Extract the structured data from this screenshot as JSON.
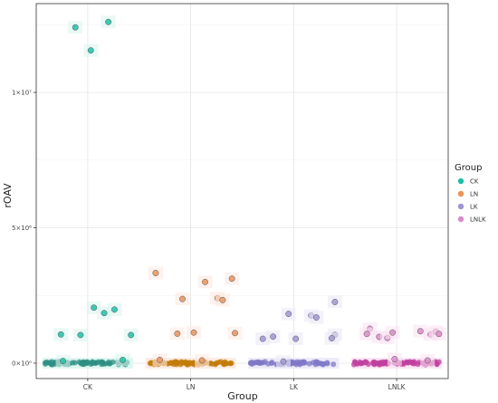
{
  "chart_data": {
    "type": "scatter",
    "xlabel": "Group",
    "ylabel": "rOAV",
    "categories": [
      "CK",
      "LN",
      "LK",
      "LNLK"
    ],
    "y_ticks": [
      {
        "value": 0,
        "label": "0×10⁰"
      },
      {
        "value": 5000000,
        "label": "5×10⁶"
      },
      {
        "value": 10000000,
        "label": "1×10⁷"
      }
    ],
    "ylim": [
      -500000,
      13200000
    ],
    "grid": true,
    "legend": {
      "title": "Group",
      "position": "right",
      "entries": [
        {
          "label": "CK",
          "color": "#1fbfa6"
        },
        {
          "label": "LN",
          "color": "#e8935a"
        },
        {
          "label": "LK",
          "color": "#9d96d4"
        },
        {
          "label": "LNLK",
          "color": "#d98bc8"
        }
      ]
    },
    "series": [
      {
        "category": "CK",
        "point_color": "#1fbfa6",
        "dense_color": "#2e8f83",
        "band_color": "#dcf5f0",
        "points": [
          {
            "offset": -0.12,
            "y": 12400000
          },
          {
            "offset": 0.2,
            "y": 12600000
          },
          {
            "offset": 0.03,
            "y": 11550000
          },
          {
            "offset": 0.06,
            "y": 2050000
          },
          {
            "offset": 0.16,
            "y": 1850000
          },
          {
            "offset": 0.26,
            "y": 1980000
          },
          {
            "offset": -0.26,
            "y": 1060000
          },
          {
            "offset": -0.07,
            "y": 1040000
          },
          {
            "offset": 0.42,
            "y": 1040000
          },
          {
            "offset": -0.24,
            "y": 80000
          },
          {
            "offset": 0.34,
            "y": 120000
          }
        ]
      },
      {
        "category": "LN",
        "point_color": "#e8935a",
        "dense_color": "#c27b08",
        "band_color": "#fde9e2",
        "points": [
          {
            "offset": -0.34,
            "y": 3330000
          },
          {
            "offset": 0.4,
            "y": 3120000
          },
          {
            "offset": 0.14,
            "y": 3000000
          },
          {
            "offset": -0.08,
            "y": 2370000
          },
          {
            "offset": 0.26,
            "y": 2400000
          },
          {
            "offset": 0.31,
            "y": 2330000
          },
          {
            "offset": -0.13,
            "y": 1090000
          },
          {
            "offset": 0.03,
            "y": 1130000
          },
          {
            "offset": 0.43,
            "y": 1110000
          },
          {
            "offset": -0.3,
            "y": 120000
          },
          {
            "offset": 0.11,
            "y": 100000
          }
        ]
      },
      {
        "category": "LK",
        "point_color": "#9d96d4",
        "dense_color": "#7f78c7",
        "band_color": "#ebe9f7",
        "points": [
          {
            "offset": -0.3,
            "y": 900000
          },
          {
            "offset": -0.2,
            "y": 980000
          },
          {
            "offset": -0.05,
            "y": 1820000
          },
          {
            "offset": 0.17,
            "y": 1760000
          },
          {
            "offset": 0.22,
            "y": 1690000
          },
          {
            "offset": 0.4,
            "y": 2260000
          },
          {
            "offset": 0.02,
            "y": 900000
          },
          {
            "offset": 0.4,
            "y": 1050000
          },
          {
            "offset": 0.37,
            "y": 920000
          },
          {
            "offset": -0.1,
            "y": 60000
          }
        ]
      },
      {
        "category": "LNLK",
        "point_color": "#d98bc8",
        "dense_color": "#c0409f",
        "band_color": "#fbe2f3",
        "points": [
          {
            "offset": -0.26,
            "y": 1270000
          },
          {
            "offset": -0.29,
            "y": 1080000
          },
          {
            "offset": -0.17,
            "y": 970000
          },
          {
            "offset": -0.09,
            "y": 930000
          },
          {
            "offset": -0.04,
            "y": 1130000
          },
          {
            "offset": 0.23,
            "y": 1180000
          },
          {
            "offset": 0.33,
            "y": 1060000
          },
          {
            "offset": 0.38,
            "y": 1160000
          },
          {
            "offset": 0.41,
            "y": 1080000
          },
          {
            "offset": -0.02,
            "y": 150000
          },
          {
            "offset": 0.3,
            "y": 100000
          }
        ]
      }
    ]
  }
}
